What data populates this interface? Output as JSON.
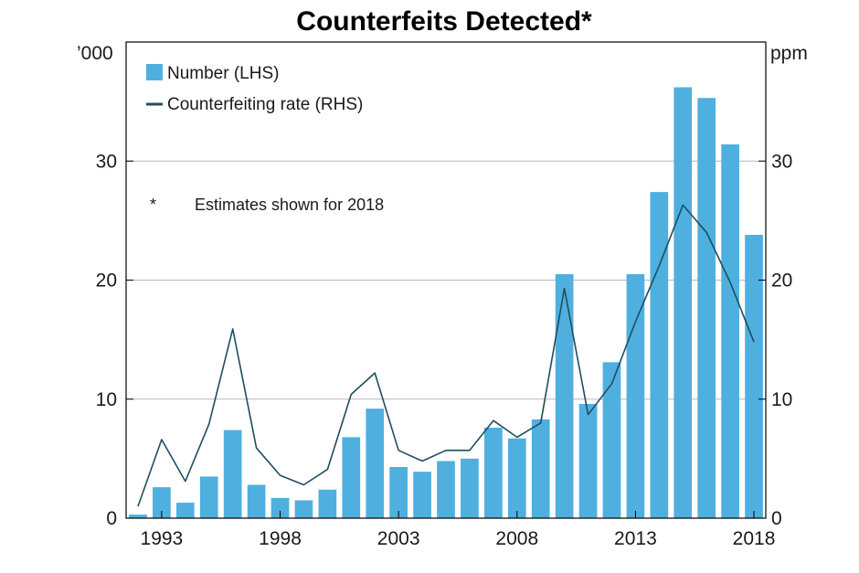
{
  "chart_data": {
    "type": "bar",
    "title": "Counterfeits Detected*",
    "left_unit": "’000",
    "right_unit": "ppm",
    "x_tick_labels": [
      "1993",
      "1998",
      "2003",
      "2008",
      "2013",
      "2018"
    ],
    "x_tick_years": [
      1993,
      1998,
      2003,
      2008,
      2013,
      2018
    ],
    "x": [
      1992,
      1993,
      1994,
      1995,
      1996,
      1997,
      1998,
      1999,
      2000,
      2001,
      2002,
      2003,
      2004,
      2005,
      2006,
      2007,
      2008,
      2009,
      2010,
      2011,
      2012,
      2013,
      2014,
      2015,
      2016,
      2017,
      2018
    ],
    "y_left_ticks": [
      "0",
      "10",
      "20",
      "30"
    ],
    "y_right_ticks": [
      "0",
      "10",
      "20",
      "30"
    ],
    "ylim_left": [
      0,
      40
    ],
    "ylim_right": [
      0,
      40
    ],
    "grid": true,
    "legend_position": "top-left",
    "series": [
      {
        "name": "Number (LHS)",
        "kind": "bar",
        "axis": "left",
        "color": "#4fb0e0",
        "values": [
          0.3,
          2.6,
          1.3,
          3.5,
          7.4,
          2.8,
          1.7,
          1.5,
          2.4,
          6.8,
          9.2,
          4.3,
          3.9,
          4.8,
          5.0,
          7.6,
          6.7,
          8.3,
          20.5,
          9.6,
          13.1,
          20.5,
          27.4,
          36.2,
          35.3,
          31.4,
          23.8
        ]
      },
      {
        "name": "Counterfeiting rate (RHS)",
        "kind": "line",
        "axis": "right",
        "color": "#1f4e5f",
        "values": [
          1.0,
          6.6,
          3.1,
          7.9,
          15.9,
          5.9,
          3.6,
          2.8,
          4.1,
          10.4,
          12.2,
          5.7,
          4.8,
          5.7,
          5.7,
          8.2,
          6.8,
          8.0,
          19.3,
          8.7,
          11.3,
          16.5,
          21.2,
          26.3,
          24.0,
          19.8,
          14.8
        ]
      }
    ],
    "annotation": {
      "marker": "*",
      "text": "Estimates shown for 2018"
    }
  }
}
